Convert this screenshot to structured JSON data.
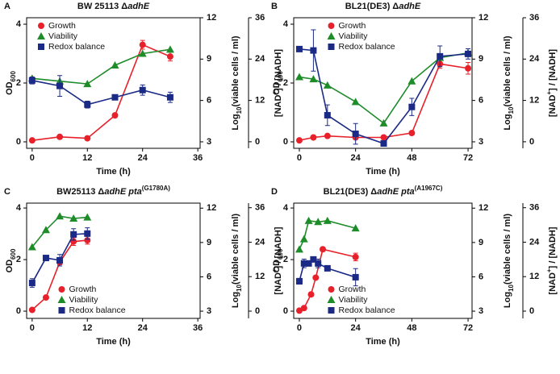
{
  "chart_data": [
    {
      "type": "line",
      "panel": "A",
      "title": [
        {
          "text": "BW 25113 Δ"
        },
        {
          "text": "adhE",
          "style": "italic"
        }
      ],
      "xlabel": "Time (h)",
      "ylabel": [
        {
          "text": "OD"
        },
        {
          "text": "600",
          "style": "sub"
        }
      ],
      "y2label": [
        {
          "text": "Log"
        },
        {
          "text": "10",
          "style": "sub"
        },
        {
          "text": "(viable cells / ml)"
        }
      ],
      "y3label": [
        {
          "text": "[NAD"
        },
        {
          "text": "+",
          "style": "sup"
        },
        {
          "text": "] / [NADH]"
        }
      ],
      "xlim": [
        -1.2,
        36.5
      ],
      "xticks": [
        0,
        12,
        24,
        36
      ],
      "ylim": [
        -0.22,
        4.22
      ],
      "yticks": [
        0,
        2,
        4
      ],
      "y2lim": [
        2.53,
        12
      ],
      "y2ticks": [
        3,
        6,
        9,
        12
      ],
      "y3lim": [
        -1.9,
        36
      ],
      "y3ticks": [
        0,
        12,
        24,
        36
      ],
      "legend_loc": "upper left",
      "series": [
        {
          "name": "Growth",
          "color": "#e8202a",
          "marker": "circle",
          "axis": "y",
          "x": [
            0,
            6,
            12,
            18,
            24,
            30
          ],
          "values": [
            0.05,
            0.17,
            0.12,
            0.9,
            3.3,
            2.9
          ],
          "errors": [
            null,
            null,
            null,
            null,
            0.15,
            0.15
          ]
        },
        {
          "name": "Viability",
          "color": "#1f8c2a",
          "marker": "triangle",
          "axis": "y2",
          "x": [
            0,
            6,
            12,
            18,
            24,
            30
          ],
          "values": [
            7.6,
            7.4,
            7.2,
            8.55,
            9.4,
            9.7
          ]
        },
        {
          "name": "Redox balance",
          "color": "#1b2a86",
          "marker": "square",
          "axis": "y3",
          "x": [
            0,
            6,
            12,
            18,
            24,
            30
          ],
          "values": [
            17.8,
            16.2,
            10.8,
            12.9,
            15,
            12.9
          ],
          "errors": [
            1,
            3,
            1,
            0.5,
            1.5,
            1.5
          ]
        }
      ]
    },
    {
      "type": "line",
      "panel": "B",
      "title": [
        {
          "text": "BL21(DE3) Δ"
        },
        {
          "text": "adhE",
          "style": "italic"
        }
      ],
      "xlabel": "Time (h)",
      "ylabel": [
        {
          "text": "OD"
        },
        {
          "text": "600",
          "style": "sub"
        }
      ],
      "y2label": [
        {
          "text": "Log"
        },
        {
          "text": "10",
          "style": "sub"
        },
        {
          "text": "(viable cells / ml)"
        }
      ],
      "y3label": [
        {
          "text": "[NAD"
        },
        {
          "text": "+",
          "style": "sup"
        },
        {
          "text": "] / [NADH]"
        }
      ],
      "xlim": [
        -2.4,
        73.7
      ],
      "xticks": [
        0,
        24,
        48,
        72
      ],
      "ylim": [
        -0.22,
        4.22
      ],
      "yticks": [
        0,
        2,
        4
      ],
      "y2lim": [
        2.53,
        12
      ],
      "y2ticks": [
        3,
        6,
        9,
        12
      ],
      "y3lim": [
        -1.9,
        36
      ],
      "y3ticks": [
        0,
        12,
        24,
        36
      ],
      "legend_loc": "upper center",
      "series": [
        {
          "name": "Growth",
          "color": "#e8202a",
          "marker": "circle",
          "axis": "y",
          "x": [
            0,
            6,
            12,
            24,
            36,
            48,
            60,
            72
          ],
          "values": [
            0.05,
            0.15,
            0.2,
            0.15,
            0.15,
            0.3,
            2.65,
            2.5
          ],
          "errors": [
            null,
            null,
            null,
            null,
            null,
            null,
            0.15,
            0.2
          ]
        },
        {
          "name": "Viability",
          "color": "#1f8c2a",
          "marker": "triangle",
          "axis": "y2",
          "x": [
            0,
            6,
            12,
            24,
            36,
            48,
            60,
            72
          ],
          "values": [
            7.7,
            7.55,
            7.1,
            5.9,
            4.35,
            7.4,
            9.1,
            9.45
          ]
        },
        {
          "name": "Redox balance",
          "color": "#1b2a86",
          "marker": "square",
          "axis": "y3",
          "x": [
            0,
            6,
            12,
            24,
            36,
            48,
            60,
            72
          ],
          "values": [
            26.9,
            26.5,
            7.7,
            2.3,
            -0.5,
            10.1,
            24.8,
            25.5
          ],
          "errors": [
            null,
            6,
            3,
            3,
            null,
            2.5,
            3,
            1.5
          ]
        }
      ]
    },
    {
      "type": "line",
      "panel": "C",
      "title": [
        {
          "text": "BW25113 Δ"
        },
        {
          "text": "adhE pta",
          "style": "italic"
        },
        {
          "text": "(G1780A)",
          "style": "sup"
        }
      ],
      "xlabel": "Time (h)",
      "ylabel": [
        {
          "text": "OD"
        },
        {
          "text": "600",
          "style": "sub"
        }
      ],
      "y2label": [
        {
          "text": "Log"
        },
        {
          "text": "10",
          "style": "sub"
        },
        {
          "text": "(viable cells / ml)"
        }
      ],
      "y3label": [
        {
          "text": "[NAD"
        },
        {
          "text": "+",
          "style": "sup"
        },
        {
          "text": "] / [NADH]"
        }
      ],
      "xlim": [
        -1.2,
        36.5
      ],
      "xticks": [
        0,
        12,
        24,
        36
      ],
      "ylim": [
        -0.28,
        4.19
      ],
      "yticks": [
        0,
        2,
        4
      ],
      "y2lim": [
        2.37,
        12.44
      ],
      "y2ticks": [
        3,
        6,
        9,
        12
      ],
      "y3lim": [
        -2.53,
        37.6
      ],
      "y3ticks": [
        0,
        12,
        24,
        36
      ],
      "legend_loc": "lower center",
      "series": [
        {
          "name": "Growth",
          "color": "#e8202a",
          "marker": "circle",
          "axis": "y",
          "x": [
            0,
            3,
            6,
            9,
            12
          ],
          "values": [
            0.05,
            0.53,
            1.9,
            2.7,
            2.75
          ],
          "errors": [
            null,
            null,
            0.1,
            0.15,
            0.15
          ]
        },
        {
          "name": "Viability",
          "color": "#1f8c2a",
          "marker": "triangle",
          "axis": "y2",
          "x": [
            0,
            3,
            6,
            9,
            12
          ],
          "values": [
            8.6,
            10.1,
            11.3,
            11.1,
            11.2
          ]
        },
        {
          "name": "Redox balance",
          "color": "#1b2a86",
          "marker": "square",
          "axis": "y3",
          "x": [
            0,
            3,
            6,
            9,
            12
          ],
          "values": [
            9.8,
            18.5,
            17.7,
            26.7,
            27.0
          ],
          "errors": [
            1.5,
            null,
            2,
            2,
            2
          ]
        }
      ]
    },
    {
      "type": "line",
      "panel": "D",
      "title": [
        {
          "text": "BL21(DE3) Δ"
        },
        {
          "text": "adhE pta",
          "style": "italic"
        },
        {
          "text": "(A1967C)",
          "style": "sup"
        }
      ],
      "xlabel": "Time (h)",
      "ylabel": [
        {
          "text": "OD"
        },
        {
          "text": "600",
          "style": "sub"
        }
      ],
      "y2label": [
        {
          "text": "Log"
        },
        {
          "text": "10",
          "style": "sub"
        },
        {
          "text": "(viable cells / ml)"
        }
      ],
      "y3label": [
        {
          "text": "[NAD"
        },
        {
          "text": "+",
          "style": "sup"
        },
        {
          "text": "] / [NADH]"
        }
      ],
      "xlim": [
        -2.4,
        73.7
      ],
      "xticks": [
        0,
        24,
        48,
        72
      ],
      "ylim": [
        -0.28,
        4.19
      ],
      "yticks": [
        0,
        2,
        4
      ],
      "y2lim": [
        2.37,
        12.44
      ],
      "y2ticks": [
        3,
        6,
        9,
        12
      ],
      "y3lim": [
        -2.53,
        37.6
      ],
      "y3ticks": [
        0,
        12,
        24,
        36
      ],
      "legend_loc": "lower center",
      "series": [
        {
          "name": "Growth",
          "color": "#e8202a",
          "marker": "circle",
          "axis": "y",
          "x": [
            0,
            2,
            5,
            7,
            10,
            24
          ],
          "values": [
            0.02,
            0.12,
            0.65,
            1.3,
            2.4,
            2.1
          ],
          "errors": [
            null,
            null,
            null,
            null,
            null,
            0.15
          ]
        },
        {
          "name": "Viability",
          "color": "#1f8c2a",
          "marker": "triangle",
          "axis": "y2",
          "x": [
            0,
            2,
            4,
            8,
            12,
            24
          ],
          "values": [
            8.4,
            9.3,
            10.9,
            10.8,
            10.9,
            10.25
          ]
        },
        {
          "name": "Redox balance",
          "color": "#1b2a86",
          "marker": "square",
          "axis": "y3",
          "x": [
            0,
            2,
            4,
            6,
            8,
            12,
            24
          ],
          "values": [
            10.4,
            16.6,
            16.6,
            18,
            16.6,
            14.9,
            11.8
          ],
          "errors": [
            1,
            1.5,
            null,
            null,
            1.5,
            null,
            3
          ]
        }
      ]
    }
  ]
}
